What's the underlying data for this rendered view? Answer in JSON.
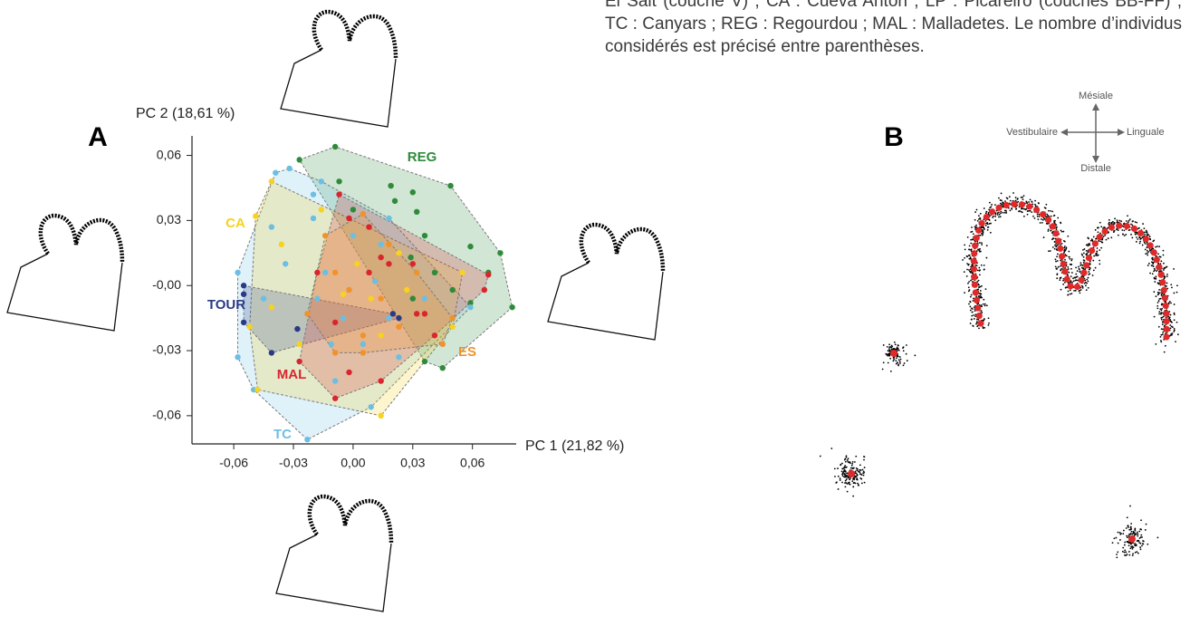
{
  "chart_data": {
    "type": "scatter",
    "panel_label": "A",
    "xlabel": "PC 1 (21,82 %)",
    "ylabel": "PC 2 (18,61 %)",
    "xlim": [
      -0.081,
      0.082
    ],
    "ylim": [
      -0.073,
      0.069
    ],
    "xticks": [
      {
        "value": -0.06,
        "label": "-0,06"
      },
      {
        "value": -0.03,
        "label": "-0,03"
      },
      {
        "value": 0,
        "label": "0,00"
      },
      {
        "value": 0.03,
        "label": "0,03"
      },
      {
        "value": 0.06,
        "label": "0,06"
      }
    ],
    "yticks": [
      {
        "value": 0.06,
        "label": "0,06"
      },
      {
        "value": 0.03,
        "label": "0,03"
      },
      {
        "value": 0,
        "label": "-0,00"
      },
      {
        "value": -0.03,
        "label": "-0,03"
      },
      {
        "value": -0.06,
        "label": "-0,06"
      }
    ],
    "hulls": true,
    "series": [
      {
        "name": "REG",
        "color": "#2e8b3a",
        "x": [
          -0.009,
          -0.027,
          0.019,
          0.049,
          0.059,
          0.074,
          0.08,
          0.068,
          0.059,
          0.045,
          0.036,
          0.03,
          0.032,
          0.036,
          0.021,
          0.0,
          0.041,
          0.05,
          0.029,
          -0.007,
          0.03
        ],
        "values": [
          0.064,
          0.058,
          0.046,
          0.046,
          0.018,
          0.015,
          -0.01,
          0.006,
          -0.008,
          -0.038,
          -0.035,
          0.043,
          0.034,
          0.023,
          0.039,
          0.035,
          0.006,
          -0.002,
          0.013,
          0.048,
          -0.006
        ]
      },
      {
        "name": "TC",
        "color": "#6cbfe2",
        "x": [
          -0.023,
          -0.05,
          -0.058,
          -0.058,
          -0.039,
          -0.032,
          -0.02,
          -0.016,
          -0.014,
          -0.005,
          0.005,
          0.009,
          0.018,
          0.032,
          0.014,
          -0.041,
          -0.045,
          -0.027,
          -0.009,
          0.023,
          0.0,
          -0.018,
          0.036,
          0.011,
          -0.011,
          -0.034,
          0.018,
          -0.02,
          0.059
        ],
        "values": [
          -0.071,
          -0.048,
          -0.033,
          0.006,
          0.052,
          0.054,
          0.042,
          0.048,
          0.006,
          -0.015,
          -0.027,
          -0.056,
          -0.015,
          0.006,
          0.019,
          0.027,
          -0.006,
          -0.035,
          -0.044,
          -0.033,
          0.023,
          -0.006,
          -0.006,
          0.002,
          -0.027,
          0.01,
          0.031,
          0.031,
          -0.01
        ]
      },
      {
        "name": "CA",
        "color": "#f7d21e",
        "x": [
          -0.049,
          -0.041,
          -0.036,
          -0.052,
          -0.048,
          0.014,
          0.05,
          0.055,
          -0.016,
          -0.005,
          0.002,
          -0.009,
          0.009,
          0.023,
          -0.041,
          -0.027,
          0.027,
          0.014
        ],
        "values": [
          0.032,
          0.048,
          0.019,
          -0.019,
          -0.048,
          -0.06,
          -0.019,
          0.006,
          0.035,
          -0.004,
          0.01,
          0.006,
          -0.006,
          0.015,
          -0.01,
          -0.027,
          -0.002,
          -0.023
        ]
      },
      {
        "name": "TOUR",
        "color": "#2b3a86",
        "x": [
          -0.055,
          -0.055,
          -0.055,
          -0.041,
          -0.028,
          0.023,
          0.02
        ],
        "values": [
          0.0,
          -0.004,
          -0.017,
          -0.031,
          -0.02,
          -0.015,
          -0.013
        ]
      },
      {
        "name": "MAL",
        "color": "#d9262e",
        "x": [
          -0.007,
          -0.002,
          0.008,
          0.014,
          0.032,
          0.036,
          0.068,
          0.066,
          -0.018,
          -0.009,
          -0.002,
          -0.009,
          -0.027,
          0.008,
          0.018,
          0.03,
          0.014,
          0.041
        ],
        "values": [
          0.042,
          0.031,
          0.027,
          0.013,
          -0.013,
          -0.013,
          0.005,
          -0.002,
          0.006,
          -0.017,
          -0.04,
          -0.052,
          -0.035,
          0.006,
          0.01,
          0.01,
          -0.044,
          -0.023
        ]
      },
      {
        "name": "ES",
        "color": "#f1922a",
        "x": [
          0.045,
          0.05,
          0.005,
          -0.014,
          -0.002,
          -0.009,
          0.014,
          0.023,
          0.005,
          0.032,
          0.005,
          -0.009,
          -0.023,
          0.018
        ],
        "values": [
          -0.027,
          -0.015,
          0.033,
          0.023,
          -0.002,
          0.006,
          -0.006,
          -0.019,
          -0.023,
          0.006,
          -0.031,
          -0.031,
          -0.013,
          0.019
        ]
      }
    ]
  },
  "panel_b": {
    "label": "B",
    "compass": {
      "top": "Mésiale",
      "left": "Vestibulaire",
      "right": "Linguale",
      "bottom": "Distale"
    }
  },
  "caption": "El Salt (couche V) ; CA : Cueva Antón ; LP : Picareiro (couches BB-FF) ; TC : Canyars ; REG : Regourdou ; MAL : Malladetes. Le nombre d’individus considérés est précisé entre parenthèses."
}
